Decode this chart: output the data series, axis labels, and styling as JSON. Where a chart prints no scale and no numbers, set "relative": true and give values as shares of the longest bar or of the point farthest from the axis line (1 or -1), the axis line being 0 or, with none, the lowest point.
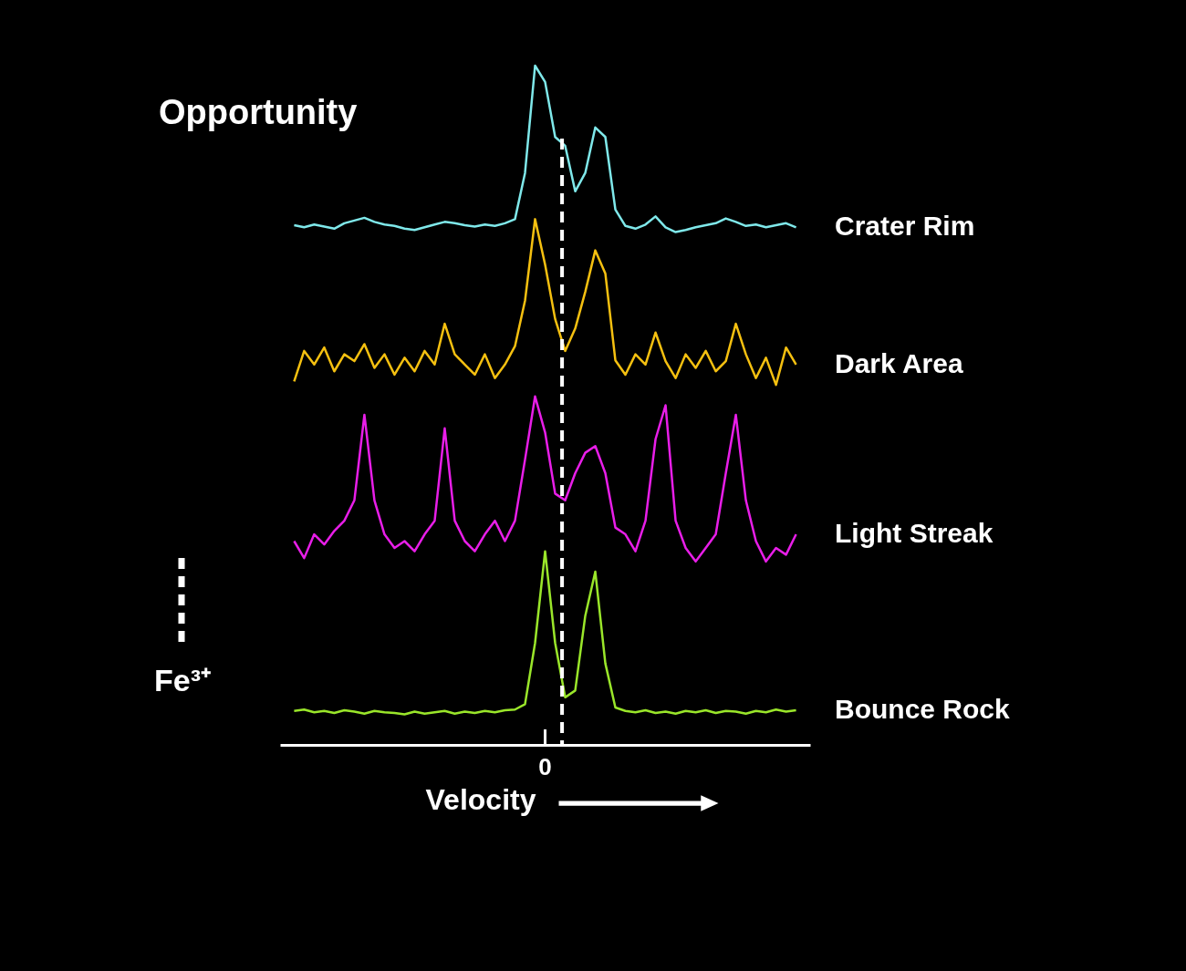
{
  "chart_data": {
    "type": "line",
    "title": "Opportunity",
    "xlabel": "Velocity",
    "relative": true,
    "categories": [
      null,
      null,
      null,
      null,
      null,
      null,
      null,
      null,
      null,
      null,
      null,
      null,
      null,
      null,
      null,
      null,
      null,
      null,
      null,
      null,
      null,
      null,
      null,
      null,
      null,
      null,
      null,
      null,
      null,
      null,
      null,
      null,
      null,
      null,
      null,
      null,
      null,
      null,
      null,
      null,
      null,
      null,
      null,
      null,
      null,
      null,
      null,
      null,
      null,
      null,
      null
    ],
    "series": [
      {
        "name": "Crater Rim",
        "color": "#7fe8ea",
        "values": [
          0.765,
          0.762,
          0.766,
          0.763,
          0.76,
          0.768,
          0.772,
          0.776,
          0.77,
          0.766,
          0.764,
          0.76,
          0.758,
          0.762,
          0.766,
          0.77,
          0.768,
          0.765,
          0.763,
          0.766,
          0.764,
          0.768,
          0.774,
          0.842,
          1.0,
          0.976,
          0.895,
          0.882,
          0.815,
          0.842,
          0.909,
          0.895,
          0.788,
          0.764,
          0.76,
          0.766,
          0.778,
          0.762,
          0.755,
          0.758,
          0.762,
          0.765,
          0.768,
          0.775,
          0.77,
          0.764,
          0.766,
          0.762,
          0.765,
          0.768,
          0.762
        ]
      },
      {
        "name": "Dark Area",
        "color": "#f5c010",
        "values": [
          0.535,
          0.58,
          0.56,
          0.585,
          0.55,
          0.575,
          0.565,
          0.59,
          0.555,
          0.575,
          0.545,
          0.57,
          0.55,
          0.58,
          0.56,
          0.62,
          0.575,
          0.56,
          0.545,
          0.575,
          0.54,
          0.56,
          0.587,
          0.654,
          0.774,
          0.707,
          0.627,
          0.58,
          0.613,
          0.667,
          0.728,
          0.694,
          0.566,
          0.545,
          0.575,
          0.56,
          0.607,
          0.565,
          0.54,
          0.575,
          0.555,
          0.58,
          0.55,
          0.565,
          0.62,
          0.575,
          0.54,
          0.57,
          0.53,
          0.585,
          0.56
        ]
      },
      {
        "name": "Light Streak",
        "color": "#e81ee8",
        "values": [
          0.3,
          0.275,
          0.31,
          0.295,
          0.315,
          0.33,
          0.36,
          0.486,
          0.36,
          0.31,
          0.29,
          0.3,
          0.285,
          0.31,
          0.33,
          0.466,
          0.33,
          0.3,
          0.285,
          0.31,
          0.33,
          0.3,
          0.33,
          0.42,
          0.513,
          0.46,
          0.37,
          0.36,
          0.4,
          0.43,
          0.44,
          0.4,
          0.32,
          0.31,
          0.285,
          0.33,
          0.45,
          0.5,
          0.33,
          0.29,
          0.27,
          0.29,
          0.31,
          0.4,
          0.486,
          0.36,
          0.3,
          0.27,
          0.29,
          0.28,
          0.31
        ]
      },
      {
        "name": "Bounce Rock",
        "color": "#9ae62a",
        "values": [
          0.05,
          0.052,
          0.048,
          0.05,
          0.047,
          0.051,
          0.049,
          0.046,
          0.05,
          0.048,
          0.047,
          0.045,
          0.049,
          0.046,
          0.048,
          0.05,
          0.046,
          0.049,
          0.047,
          0.05,
          0.048,
          0.051,
          0.052,
          0.06,
          0.15,
          0.285,
          0.15,
          0.07,
          0.08,
          0.19,
          0.255,
          0.12,
          0.055,
          0.05,
          0.048,
          0.051,
          0.047,
          0.049,
          0.046,
          0.05,
          0.048,
          0.051,
          0.047,
          0.05,
          0.049,
          0.046,
          0.05,
          0.048,
          0.052,
          0.049,
          0.051
        ]
      }
    ],
    "annotations": [
      "0",
      "Fe³⁺"
    ]
  }
}
